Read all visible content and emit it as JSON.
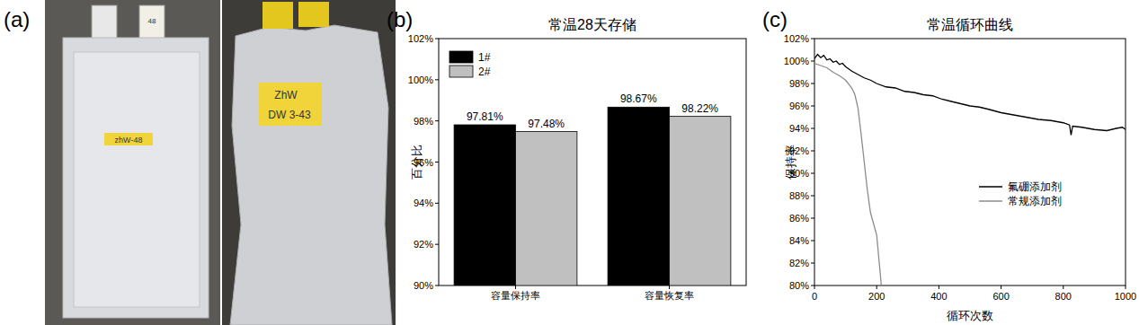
{
  "photo": {
    "annotations": [
      "(a)"
    ],
    "labels": [
      "zhW-48",
      "48",
      "ZhW",
      "DW 3-43"
    ]
  },
  "chart_data": [
    {
      "type": "bar",
      "title": "常温28天存储",
      "annotations": [
        "(b)"
      ],
      "ylabel": "百分比",
      "categories": [
        "容量保持率",
        "容量恢复率"
      ],
      "series": [
        {
          "name": "1#",
          "color": "#000000",
          "values": [
            97.81,
            98.67
          ],
          "value_labels": [
            "97.81%",
            "98.67%"
          ]
        },
        {
          "name": "2#",
          "color": "#c0c0c0",
          "values": [
            97.48,
            98.22
          ],
          "value_labels": [
            "97.48%",
            "98.22%"
          ]
        }
      ],
      "ylim": [
        90,
        102
      ],
      "yticks": [
        {
          "value": 90,
          "label": "90%"
        },
        {
          "value": 92,
          "label": "92%"
        },
        {
          "value": 94,
          "label": "94%"
        },
        {
          "value": 96,
          "label": "96%"
        },
        {
          "value": 98,
          "label": "98%"
        },
        {
          "value": 100,
          "label": "100%"
        },
        {
          "value": 102,
          "label": "102%"
        }
      ],
      "data_labels": true,
      "legend": "upper left",
      "grid": false
    },
    {
      "type": "line",
      "title": "常温循环曲线",
      "annotations": [
        "(c)"
      ],
      "xlabel": "循环次数",
      "ylabel": "保持率",
      "series": [
        {
          "name": "氟硼添加剂",
          "color": "#000000",
          "line_style": "solid",
          "x": [
            0,
            10,
            20,
            30,
            40,
            50,
            60,
            70,
            80,
            90,
            100,
            120,
            140,
            160,
            180,
            200,
            230,
            260,
            290,
            320,
            350,
            380,
            410,
            440,
            470,
            500,
            530,
            560,
            600,
            640,
            680,
            720,
            760,
            800,
            820,
            825,
            830,
            860,
            900,
            940,
            970,
            990,
            1000
          ],
          "values": [
            100.2,
            100.6,
            100.3,
            100.5,
            100.1,
            100.2,
            99.9,
            100.0,
            99.7,
            99.8,
            99.5,
            99.1,
            98.8,
            98.5,
            98.3,
            98.0,
            97.7,
            97.6,
            97.3,
            97.2,
            97.0,
            96.9,
            96.6,
            96.4,
            96.2,
            96.0,
            95.9,
            95.7,
            95.4,
            95.2,
            95.0,
            94.8,
            94.7,
            94.5,
            94.3,
            93.4,
            94.2,
            94.1,
            93.9,
            93.8,
            94.0,
            94.1,
            93.9
          ]
        },
        {
          "name": "常规添加剂",
          "color": "#8c8c8c",
          "line_style": "solid",
          "x": [
            0,
            20,
            40,
            60,
            80,
            100,
            120,
            130,
            140,
            150,
            160,
            170,
            180,
            190,
            200,
            210,
            215
          ],
          "values": [
            99.8,
            99.6,
            99.4,
            99.0,
            98.7,
            98.3,
            97.6,
            97.0,
            95.8,
            93.5,
            91.0,
            88.5,
            86.5,
            85.5,
            84.5,
            81.5,
            80.0
          ]
        }
      ],
      "xlim": [
        0,
        1000
      ],
      "xticks": [
        0,
        200,
        400,
        600,
        800,
        1000
      ],
      "ylim": [
        80,
        102
      ],
      "yticks": [
        {
          "value": 80,
          "label": "80%"
        },
        {
          "value": 82,
          "label": "82%"
        },
        {
          "value": 84,
          "label": "84%"
        },
        {
          "value": 86,
          "label": "86%"
        },
        {
          "value": 88,
          "label": "88%"
        },
        {
          "value": 90,
          "label": "90%"
        },
        {
          "value": 92,
          "label": "92%"
        },
        {
          "value": 94,
          "label": "94%"
        },
        {
          "value": 96,
          "label": "96%"
        },
        {
          "value": 98,
          "label": "98%"
        },
        {
          "value": 100,
          "label": "100%"
        },
        {
          "value": 102,
          "label": "102%"
        }
      ],
      "legend": "center right",
      "grid": false
    }
  ]
}
